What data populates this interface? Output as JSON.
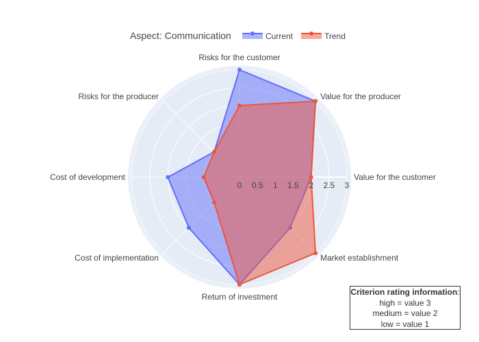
{
  "chart_data": {
    "type": "radar",
    "title": "Aspect: Communication",
    "axes": [
      "Value for the customer",
      "Value for the producer",
      "Risks for the customer",
      "Risks for the producer",
      "Cost of development",
      "Cost of implementation",
      "Return of investment",
      "Market establishment"
    ],
    "radial_range": [
      0,
      3
    ],
    "radial_ticks": [
      "0",
      "0.5",
      "1",
      "1.5",
      "2",
      "2.5",
      "3"
    ],
    "series": [
      {
        "name": "Current",
        "color": "#636efa",
        "values": [
          2,
          3,
          3,
          1,
          2,
          2,
          3,
          2
        ]
      },
      {
        "name": "Trend",
        "color": "#ef553b",
        "values": [
          2,
          3,
          2,
          1,
          1,
          1,
          3,
          3
        ]
      }
    ],
    "legend_position": "top"
  },
  "info_box": {
    "title": "Criterion rating information",
    "colon": ":",
    "lines": [
      "high = value 3",
      "medium = value 2",
      "low = value 1"
    ]
  }
}
